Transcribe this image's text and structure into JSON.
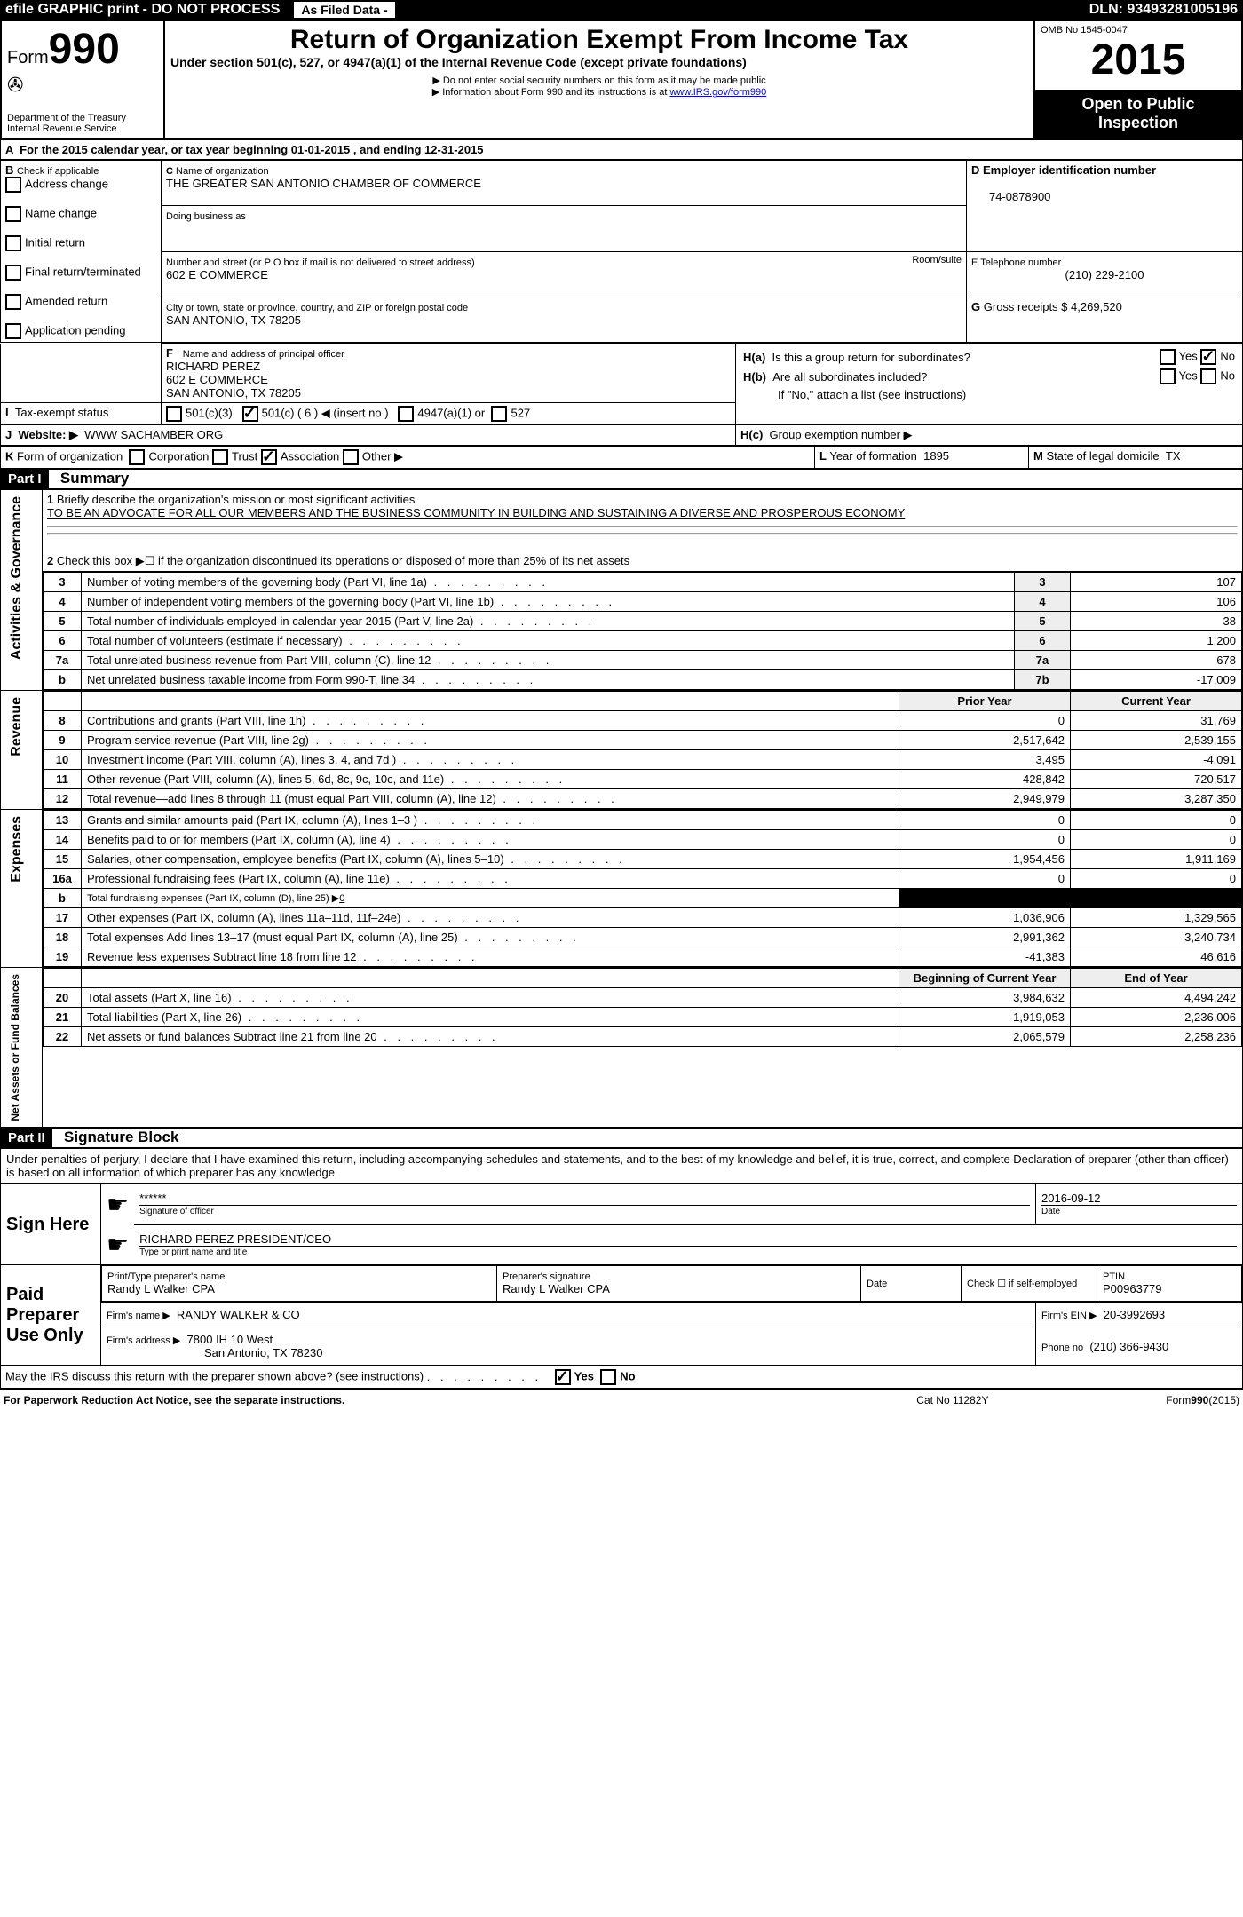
{
  "topbar": {
    "efile": "efile GRAPHIC print - DO NOT PROCESS",
    "asfiled": "As Filed Data -",
    "dln_label": "DLN:",
    "dln": "93493281005196"
  },
  "header": {
    "form_word": "Form",
    "form_num": "990",
    "dept": "Department of the Treasury",
    "irs": "Internal Revenue Service",
    "title": "Return of Organization Exempt From Income Tax",
    "subtitle": "Under section 501(c), 527, or 4947(a)(1) of the Internal Revenue Code (except private foundations)",
    "note1": "▶ Do not enter social security numbers on this form as it may be made public",
    "note2": "▶ Information about Form 990 and its instructions is at ",
    "note2_link": "www.IRS.gov/form990",
    "omb": "OMB No 1545-0047",
    "year": "2015",
    "open": "Open to Public Inspection"
  },
  "A": {
    "text": "For the 2015 calendar year, or tax year beginning 01-01-2015     , and ending 12-31-2015"
  },
  "B": {
    "label": "Check if applicable",
    "items": [
      "Address change",
      "Name change",
      "Initial return",
      "Final return/terminated",
      "Amended return",
      "Application pending"
    ]
  },
  "C": {
    "label": "Name of organization",
    "name": "THE GREATER SAN ANTONIO CHAMBER OF COMMERCE",
    "dba_label": "Doing business as",
    "street_label": "Number and street (or P O  box if mail is not delivered to street address)",
    "room_label": "Room/suite",
    "street": "602 E COMMERCE",
    "city_label": "City or town, state or province, country, and ZIP or foreign postal code",
    "city": "SAN ANTONIO, TX  78205"
  },
  "D": {
    "label": "Employer identification number",
    "val": "74-0878900"
  },
  "E": {
    "label": "E Telephone number",
    "val": "(210) 229-2100"
  },
  "G": {
    "label": "Gross receipts $",
    "val": "4,269,520"
  },
  "F": {
    "label": "Name and address of principal officer",
    "name": "RICHARD PEREZ",
    "street": "602 E COMMERCE",
    "city": "SAN ANTONIO, TX  78205"
  },
  "H": {
    "a": "Is this a group return for subordinates?",
    "b": "Are all subordinates included?",
    "note": "If \"No,\" attach a list  (see instructions)",
    "c": "Group exemption number ▶",
    "yes": "Yes",
    "no": "No"
  },
  "I": {
    "label": "Tax-exempt status",
    "opts": [
      "501(c)(3)",
      "501(c) ( 6 ) ◀ (insert no )",
      "4947(a)(1) or",
      "527"
    ]
  },
  "J": {
    "label": "Website: ▶",
    "val": "WWW SACHAMBER ORG"
  },
  "K": {
    "label": "Form of organization",
    "opts": [
      "Corporation",
      "Trust",
      "Association",
      "Other ▶"
    ]
  },
  "L": {
    "label": "Year of formation",
    "val": "1895"
  },
  "M": {
    "label": "State of legal domicile",
    "val": "TX"
  },
  "part1": {
    "label": "Part I",
    "title": "Summary",
    "q1": "Briefly describe the organization's mission or most significant activities",
    "q1a": "TO BE AN ADVOCATE FOR ALL OUR MEMBERS AND THE BUSINESS COMMUNITY IN BUILDING AND SUSTAINING A DIVERSE AND PROSPEROUS ECONOMY",
    "q2": "Check this box ▶☐ if the organization discontinued its operations or disposed of more than 25% of its net assets",
    "sideA": "Activities & Governance",
    "sideR": "Revenue",
    "sideE": "Expenses",
    "sideN": "Net Assets or Fund Balances",
    "rows_gov": [
      {
        "n": "3",
        "t": "Number of voting members of the governing body (Part VI, line 1a)",
        "box": "3",
        "v": "107"
      },
      {
        "n": "4",
        "t": "Number of independent voting members of the governing body (Part VI, line 1b)",
        "box": "4",
        "v": "106"
      },
      {
        "n": "5",
        "t": "Total number of individuals employed in calendar year 2015 (Part V, line 2a)",
        "box": "5",
        "v": "38"
      },
      {
        "n": "6",
        "t": "Total number of volunteers (estimate if necessary)",
        "box": "6",
        "v": "1,200"
      },
      {
        "n": "7a",
        "t": "Total unrelated business revenue from Part VIII, column (C), line 12",
        "box": "7a",
        "v": "678"
      },
      {
        "n": "b",
        "t": "Net unrelated business taxable income from Form 990-T, line 34",
        "box": "7b",
        "v": "-17,009"
      }
    ],
    "col_prior": "Prior Year",
    "col_curr": "Current Year",
    "rows_rev": [
      {
        "n": "8",
        "t": "Contributions and grants (Part VIII, line 1h)",
        "p": "0",
        "c": "31,769"
      },
      {
        "n": "9",
        "t": "Program service revenue (Part VIII, line 2g)",
        "p": "2,517,642",
        "c": "2,539,155"
      },
      {
        "n": "10",
        "t": "Investment income (Part VIII, column (A), lines 3, 4, and 7d )",
        "p": "3,495",
        "c": "-4,091"
      },
      {
        "n": "11",
        "t": "Other revenue (Part VIII, column (A), lines 5, 6d, 8c, 9c, 10c, and 11e)",
        "p": "428,842",
        "c": "720,517"
      },
      {
        "n": "12",
        "t": "Total revenue—add lines 8 through 11 (must equal Part VIII, column (A), line 12)",
        "p": "2,949,979",
        "c": "3,287,350"
      }
    ],
    "rows_exp": [
      {
        "n": "13",
        "t": "Grants and similar amounts paid (Part IX, column (A), lines 1–3 )",
        "p": "0",
        "c": "0"
      },
      {
        "n": "14",
        "t": "Benefits paid to or for members (Part IX, column (A), line 4)",
        "p": "0",
        "c": "0"
      },
      {
        "n": "15",
        "t": "Salaries, other compensation, employee benefits (Part IX, column (A), lines 5–10)",
        "p": "1,954,456",
        "c": "1,911,169"
      },
      {
        "n": "16a",
        "t": "Professional fundraising fees (Part IX, column (A), line 11e)",
        "p": "0",
        "c": "0"
      },
      {
        "n": "b",
        "t": "Total fundraising expenses (Part IX, column (D), line 25) ▶",
        "p": "",
        "c": "",
        "fund": "0"
      },
      {
        "n": "17",
        "t": "Other expenses (Part IX, column (A), lines 11a–11d, 11f–24e)",
        "p": "1,036,906",
        "c": "1,329,565"
      },
      {
        "n": "18",
        "t": "Total expenses  Add lines 13–17 (must equal Part IX, column (A), line 25)",
        "p": "2,991,362",
        "c": "3,240,734"
      },
      {
        "n": "19",
        "t": "Revenue less expenses  Subtract line 18 from line 12",
        "p": "-41,383",
        "c": "46,616"
      }
    ],
    "col_beg": "Beginning of Current Year",
    "col_end": "End of Year",
    "rows_net": [
      {
        "n": "20",
        "t": "Total assets (Part X, line 16)",
        "p": "3,984,632",
        "c": "4,494,242"
      },
      {
        "n": "21",
        "t": "Total liabilities (Part X, line 26)",
        "p": "1,919,053",
        "c": "2,236,006"
      },
      {
        "n": "22",
        "t": "Net assets or fund balances  Subtract line 21 from line 20",
        "p": "2,065,579",
        "c": "2,258,236"
      }
    ]
  },
  "part2": {
    "label": "Part II",
    "title": "Signature Block",
    "perjury": "Under penalties of perjury, I declare that I have examined this return, including accompanying schedules and statements, and to the best of my knowledge and belief, it is true, correct, and complete  Declaration of preparer (other than officer) is based on all information of which preparer has any knowledge",
    "sign_here": "Sign Here",
    "stars": "******",
    "sig_officer": "Signature of officer",
    "date_label": "Date",
    "date": "2016-09-12",
    "name_title": "RICHARD PEREZ PRESIDENT/CEO",
    "name_title_label": "Type or print name and title",
    "paid": "Paid Preparer Use Only",
    "prep_name_label": "Print/Type preparer's name",
    "prep_name": "Randy L Walker CPA",
    "prep_sig_label": "Preparer's signature",
    "prep_sig": "Randy L Walker CPA",
    "check_self": "Check ☐ if self-employed",
    "ptin_label": "PTIN",
    "ptin": "P00963779",
    "firm_name_label": "Firm's name      ▶",
    "firm_name": "RANDY WALKER & CO",
    "firm_ein_label": "Firm's EIN ▶",
    "firm_ein": "20-3992693",
    "firm_addr_label": "Firm's address ▶",
    "firm_addr1": "7800 IH 10 West",
    "firm_addr2": "San Antonio, TX  78230",
    "phone_label": "Phone no",
    "phone": "(210) 366-9430",
    "discuss": "May the IRS discuss this return with the preparer shown above? (see instructions)",
    "yes": "Yes",
    "no": "No"
  },
  "footer": {
    "pra": "For Paperwork Reduction Act Notice, see the separate instructions.",
    "cat": "Cat No  11282Y",
    "form": "Form",
    "formno": "990",
    "formyr": "(2015)"
  }
}
